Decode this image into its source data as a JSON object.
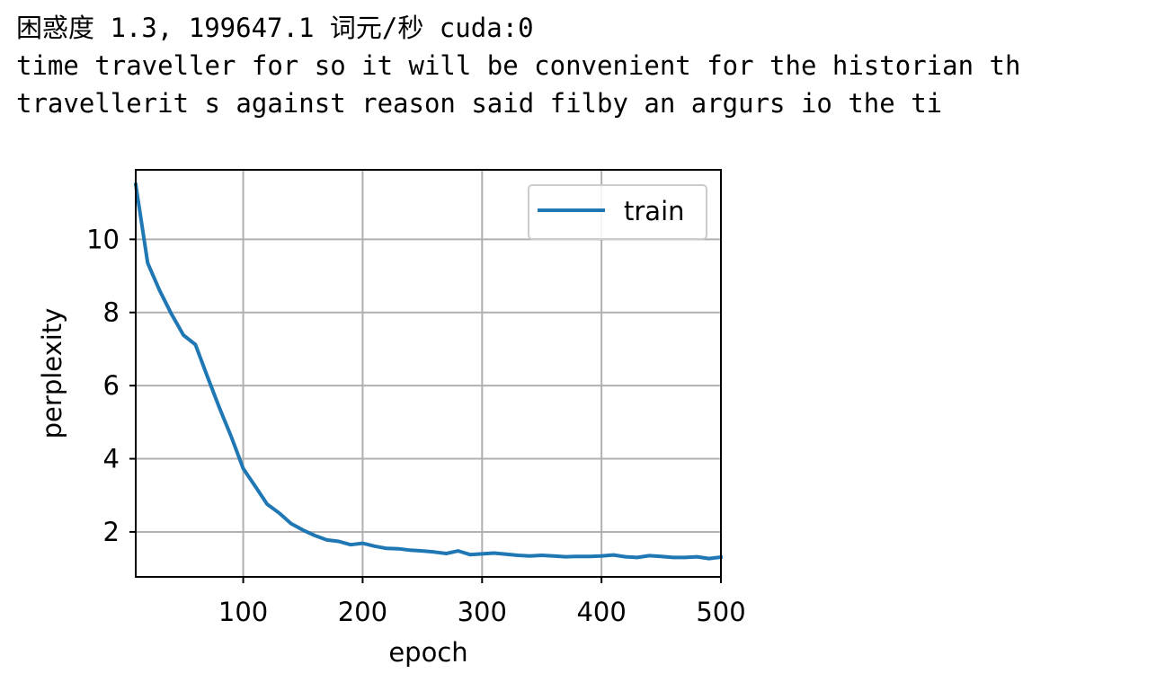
{
  "output": {
    "lines": [
      "困惑度 1.3, 199647.1 词元/秒 cuda:0",
      "time traveller for so it will be convenient for the historian th",
      "travellerit s against reason said filby an argurs io the ti"
    ]
  },
  "chart_data": {
    "type": "line",
    "xlabel": "epoch",
    "ylabel": "perplexity",
    "xlim": [
      10,
      500
    ],
    "ylim": [
      0.77,
      11.9
    ],
    "xticks": [
      100,
      200,
      300,
      400,
      500
    ],
    "yticks": [
      2,
      4,
      6,
      8,
      10
    ],
    "grid": true,
    "legend_position": "upper right",
    "series": [
      {
        "name": "train",
        "color": "#1f77b4",
        "x": [
          10,
          20,
          30,
          40,
          50,
          60,
          70,
          80,
          90,
          100,
          110,
          120,
          130,
          140,
          150,
          160,
          170,
          180,
          190,
          200,
          210,
          220,
          230,
          240,
          250,
          260,
          270,
          280,
          290,
          300,
          310,
          320,
          330,
          340,
          350,
          360,
          370,
          380,
          390,
          400,
          410,
          420,
          430,
          440,
          450,
          460,
          470,
          480,
          490,
          500
        ],
        "y": [
          11.5,
          9.35,
          8.6,
          7.95,
          7.38,
          7.12,
          6.25,
          5.4,
          4.6,
          3.73,
          3.25,
          2.76,
          2.52,
          2.23,
          2.05,
          1.9,
          1.78,
          1.74,
          1.65,
          1.69,
          1.61,
          1.55,
          1.54,
          1.5,
          1.48,
          1.45,
          1.41,
          1.48,
          1.38,
          1.4,
          1.42,
          1.39,
          1.36,
          1.34,
          1.36,
          1.34,
          1.32,
          1.33,
          1.33,
          1.34,
          1.37,
          1.32,
          1.3,
          1.35,
          1.33,
          1.3,
          1.3,
          1.32,
          1.27,
          1.31
        ]
      }
    ]
  }
}
